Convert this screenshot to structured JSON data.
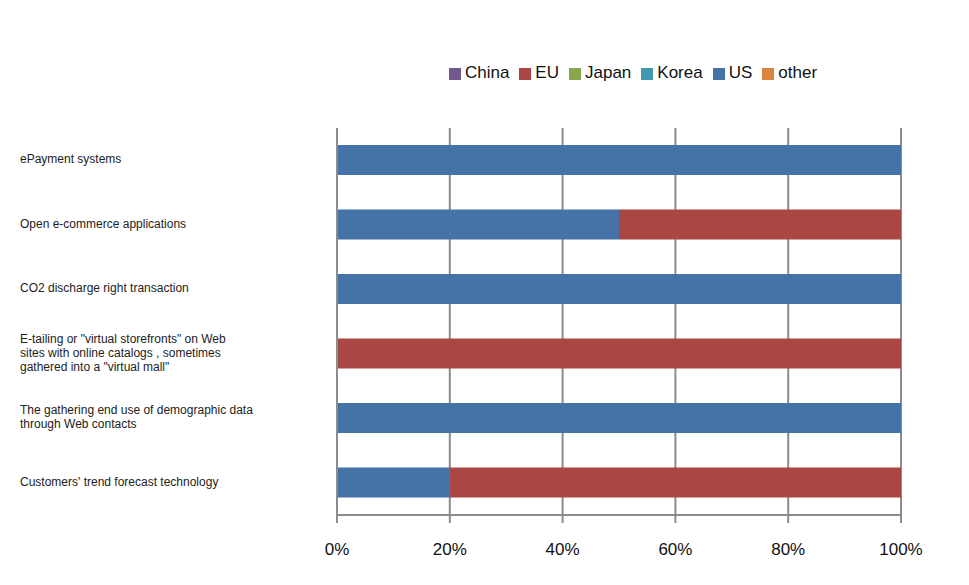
{
  "chart_data": {
    "type": "bar",
    "orientation": "horizontal",
    "stacked": true,
    "grid": true,
    "legend": "top",
    "categories": [
      "ePayment systems",
      "Open e-commerce applications",
      "CO2 discharge right transaction",
      "E-tailing  or \"virtual storefronts\" on Web sites with online catalogs ,  sometimes gathered into a \"virtual mall\"",
      "The gathering end use of  demographic data through Web contacts",
      "Customers' trend forecast technology"
    ],
    "series": [
      {
        "name": "US",
        "color": "#4572a7",
        "values": [
          100,
          50,
          100,
          0,
          100,
          20
        ]
      },
      {
        "name": "EU",
        "color": "#aa4643",
        "values": [
          0,
          50,
          0,
          100,
          0,
          80
        ]
      },
      {
        "name": "Japan",
        "color": "#89a54e",
        "values": [
          0,
          0,
          0,
          0,
          0,
          0
        ]
      },
      {
        "name": "China",
        "color": "#71588f",
        "values": [
          0,
          0,
          0,
          0,
          0,
          0
        ]
      },
      {
        "name": "Korea",
        "color": "#4198af",
        "values": [
          0,
          0,
          0,
          0,
          0,
          0
        ]
      },
      {
        "name": "other",
        "color": "#db843d",
        "values": [
          0,
          0,
          0,
          0,
          0,
          0
        ]
      }
    ],
    "xlim": [
      0,
      100
    ],
    "xticks": [
      {
        "value": 0,
        "label": "0%"
      },
      {
        "value": 20,
        "label": "20%"
      },
      {
        "value": 40,
        "label": "40%"
      },
      {
        "value": 60,
        "label": "60%"
      },
      {
        "value": 80,
        "label": "80%"
      },
      {
        "value": 100,
        "label": "100%"
      }
    ]
  }
}
